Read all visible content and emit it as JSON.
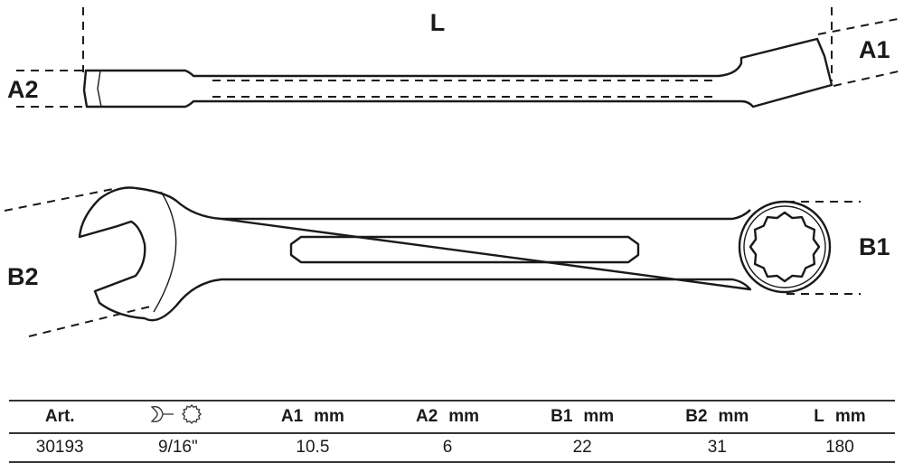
{
  "drawing": {
    "labels": {
      "L": "L",
      "A1": "A1",
      "A2": "A2",
      "B1": "B1",
      "B2": "B2"
    }
  },
  "table": {
    "headers": [
      {
        "label": "Art.",
        "unit": ""
      },
      {
        "label": "",
        "unit": "",
        "icons": [
          "open-end-wrench-icon",
          "12-point-ring-icon"
        ]
      },
      {
        "label": "A1",
        "unit": "mm"
      },
      {
        "label": "A2",
        "unit": "mm"
      },
      {
        "label": "B1",
        "unit": "mm"
      },
      {
        "label": "B2",
        "unit": "mm"
      },
      {
        "label": "L",
        "unit": "mm"
      }
    ],
    "rows": [
      [
        "30193",
        "9/16\"",
        "10.5",
        "6",
        "22",
        "31",
        "180"
      ]
    ]
  }
}
